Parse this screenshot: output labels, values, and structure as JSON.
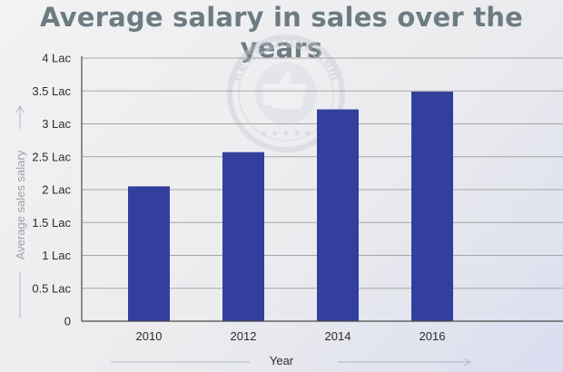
{
  "chart_data": {
    "type": "bar",
    "title": "Average salary in sales over the years",
    "xlabel": "Year",
    "ylabel": "Average sales salary",
    "categories": [
      "2010",
      "2012",
      "2014",
      "2016"
    ],
    "values": [
      2.05,
      2.57,
      3.22,
      3.49
    ],
    "ylim": [
      0,
      4
    ],
    "yticks": [
      0,
      0.5,
      1,
      1.5,
      2,
      2.5,
      3,
      3.5,
      4
    ],
    "ytick_labels": [
      "0",
      "0.5 Lac",
      "1 Lac",
      "1.5 Lac",
      "2 Lac",
      "2.5 Lac",
      "3 Lac",
      "3.5 Lac",
      "4 Lac"
    ],
    "grid": true,
    "bar_color": "#323f9d"
  },
  "watermark": {
    "text": "ReviewAdda.Com"
  }
}
